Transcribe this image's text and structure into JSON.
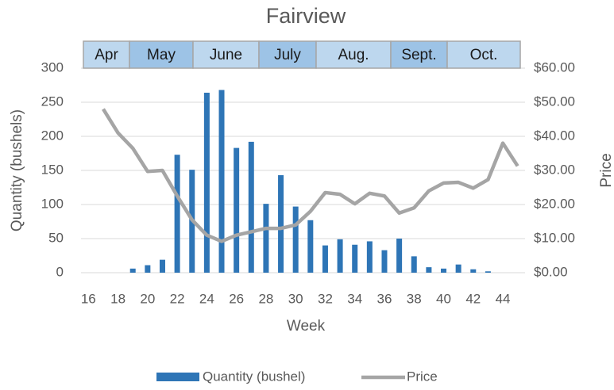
{
  "chart_data": {
    "type": "bar_line",
    "title": "Fairview",
    "xlabel": "Week",
    "ylabel": "Quantity (bushels)",
    "y2label": "Price",
    "months": [
      "Apr",
      "May",
      "June",
      "July",
      "Aug.",
      "Sept.",
      "Oct."
    ],
    "x": [
      17,
      18,
      19,
      20,
      21,
      22,
      23,
      24,
      25,
      26,
      27,
      28,
      29,
      30,
      31,
      32,
      33,
      34,
      35,
      36,
      37,
      38,
      39,
      40,
      41,
      42,
      43,
      44,
      45
    ],
    "series": [
      {
        "name": "Quantity (bushel)",
        "color": "#2e75b6",
        "type": "bar",
        "values": [
          0,
          0,
          6,
          11,
          19,
          173,
          151,
          264,
          268,
          183,
          192,
          101,
          143,
          97,
          77,
          40,
          49,
          41,
          46,
          33,
          50,
          24,
          8,
          6,
          12,
          5,
          2,
          0,
          0
        ]
      },
      {
        "name": "Price",
        "color": "#a5a5a5",
        "type": "line",
        "axis": "y2",
        "values": [
          48,
          41,
          36.5,
          29.7,
          30,
          22.5,
          15.5,
          11,
          9.2,
          11,
          12,
          13,
          13,
          14,
          18,
          23.5,
          23,
          20.2,
          23.3,
          22.5,
          17.5,
          19,
          24,
          26.3,
          26.5,
          24.8,
          27.3,
          38,
          31.3
        ]
      }
    ],
    "xlim": [
      15.5,
      45.5
    ],
    "xticks": [
      16,
      18,
      20,
      22,
      24,
      26,
      28,
      30,
      32,
      34,
      36,
      38,
      40,
      42,
      44
    ],
    "ylim": [
      0,
      300
    ],
    "yticks": [
      0,
      50,
      100,
      150,
      200,
      250,
      300
    ],
    "y2lim": [
      0,
      60
    ],
    "y2ticks": [
      {
        "value": 0,
        "label": "$0.00"
      },
      {
        "value": 10,
        "label": "$10.00"
      },
      {
        "value": 20,
        "label": "$20.00"
      },
      {
        "value": 30,
        "label": "$30.00"
      },
      {
        "value": 40,
        "label": "$40.00"
      },
      {
        "value": 50,
        "label": "$50.00"
      },
      {
        "value": 60,
        "label": "$60.00"
      }
    ],
    "grid": true,
    "legend": "bottom"
  }
}
